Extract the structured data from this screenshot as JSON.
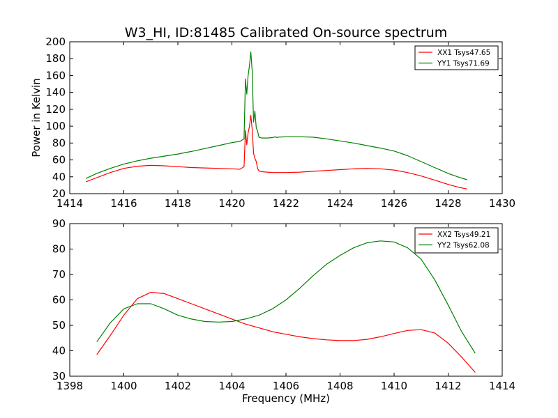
{
  "chart_data": [
    {
      "type": "line",
      "title": "W3_HI, ID:81485 Calibrated On-source spectrum",
      "xlabel": "",
      "ylabel": "Power in Kelvin",
      "xlim": [
        1414,
        1430
      ],
      "ylim": [
        20,
        200
      ],
      "xticks": [
        "1414",
        "1416",
        "1418",
        "1420",
        "1422",
        "1424",
        "1426",
        "1428",
        "1430"
      ],
      "yticks": [
        "20",
        "40",
        "60",
        "80",
        "100",
        "120",
        "140",
        "160",
        "180",
        "200"
      ],
      "legend_position": "top-right",
      "grid": false,
      "series": [
        {
          "name": "XX1 Tsys47.65",
          "color": "#ff0000",
          "x": [
            1414.6,
            1415.0,
            1415.5,
            1416.0,
            1416.5,
            1417.0,
            1417.5,
            1418.0,
            1418.5,
            1419.0,
            1419.5,
            1420.0,
            1420.3,
            1420.45,
            1420.5,
            1420.55,
            1420.6,
            1420.65,
            1420.7,
            1420.75,
            1420.8,
            1420.85,
            1420.9,
            1420.95,
            1421.0,
            1421.1,
            1421.3,
            1421.5,
            1422.0,
            1422.5,
            1423.0,
            1423.5,
            1424.0,
            1424.5,
            1425.0,
            1425.5,
            1426.0,
            1426.5,
            1427.0,
            1427.5,
            1428.0,
            1428.4,
            1428.7
          ],
          "y": [
            34,
            39,
            45,
            50,
            52.5,
            53.5,
            53,
            52,
            51,
            50.5,
            50,
            49.5,
            49,
            52,
            95,
            78,
            92,
            100,
            113,
            96,
            68,
            62,
            58,
            50,
            47,
            46,
            45.5,
            45,
            45,
            45.5,
            46.5,
            47.5,
            48.5,
            49.5,
            50,
            49.5,
            48,
            45,
            41,
            36,
            31,
            27.5,
            25.5
          ]
        },
        {
          "name": "YY1 Tsys71.69",
          "color": "#008000",
          "x": [
            1414.6,
            1415.0,
            1415.5,
            1416.0,
            1416.5,
            1417.0,
            1417.5,
            1418.0,
            1418.5,
            1419.0,
            1419.5,
            1420.0,
            1420.3,
            1420.45,
            1420.5,
            1420.55,
            1420.6,
            1420.65,
            1420.7,
            1420.75,
            1420.8,
            1420.85,
            1420.9,
            1420.95,
            1421.0,
            1421.1,
            1421.3,
            1421.5,
            1421.6,
            1421.65,
            1421.7,
            1422.0,
            1422.5,
            1423.0,
            1423.5,
            1424.0,
            1424.5,
            1425.0,
            1425.5,
            1426.0,
            1426.5,
            1427.0,
            1427.5,
            1428.0,
            1428.4,
            1428.7
          ],
          "y": [
            38,
            44,
            50,
            55,
            59,
            62,
            64.5,
            67,
            70,
            73.5,
            77,
            80.5,
            82,
            85,
            156,
            138,
            160,
            172,
            188,
            165,
            105,
            118,
            98,
            94,
            87,
            86,
            86,
            86.5,
            87.5,
            86.5,
            87,
            87.5,
            87.5,
            87,
            85,
            82.5,
            80,
            77,
            74,
            70.5,
            65,
            58,
            51,
            44,
            39.5,
            36.5
          ]
        }
      ]
    },
    {
      "type": "line",
      "title": "",
      "xlabel": "Frequency (MHz)",
      "ylabel": "",
      "xlim": [
        1398,
        1414
      ],
      "ylim": [
        30,
        90
      ],
      "xticks": [
        "1398",
        "1400",
        "1402",
        "1404",
        "1406",
        "1408",
        "1410",
        "1412",
        "1414"
      ],
      "yticks": [
        "30",
        "40",
        "50",
        "60",
        "70",
        "80",
        "90"
      ],
      "legend_position": "top-right",
      "grid": false,
      "series": [
        {
          "name": "XX2 Tsys49.21",
          "color": "#ff0000",
          "x": [
            1399.0,
            1399.5,
            1400.0,
            1400.5,
            1401.0,
            1401.5,
            1402.0,
            1402.5,
            1403.0,
            1403.5,
            1404.0,
            1404.5,
            1405.0,
            1405.5,
            1406.0,
            1406.5,
            1407.0,
            1407.5,
            1408.0,
            1408.5,
            1409.0,
            1409.5,
            1410.0,
            1410.5,
            1411.0,
            1411.5,
            1412.0,
            1412.5,
            1413.0
          ],
          "y": [
            38.5,
            46,
            54,
            60.5,
            63,
            62.5,
            60.5,
            58.5,
            56.5,
            54.5,
            52.5,
            50.5,
            49,
            47.5,
            46.5,
            45.5,
            44.8,
            44.3,
            44,
            44,
            44.5,
            45.5,
            46.8,
            48,
            48.3,
            47,
            43,
            37.5,
            31.5
          ]
        },
        {
          "name": "YY2 Tsys62.08",
          "color": "#008000",
          "x": [
            1399.0,
            1399.5,
            1400.0,
            1400.5,
            1401.0,
            1401.5,
            1402.0,
            1402.5,
            1403.0,
            1403.5,
            1404.0,
            1404.5,
            1405.0,
            1405.5,
            1406.0,
            1406.5,
            1407.0,
            1407.5,
            1408.0,
            1408.5,
            1409.0,
            1409.5,
            1410.0,
            1410.5,
            1411.0,
            1411.5,
            1412.0,
            1412.5,
            1413.0
          ],
          "y": [
            43.5,
            51,
            56.5,
            58.5,
            58.5,
            56.5,
            54,
            52.5,
            51.5,
            51.3,
            51.5,
            52.5,
            54,
            56.5,
            60,
            64.5,
            69.5,
            74,
            77.5,
            80.5,
            82.5,
            83.2,
            82.8,
            80.5,
            76,
            68,
            58,
            47.5,
            39
          ]
        }
      ]
    }
  ]
}
